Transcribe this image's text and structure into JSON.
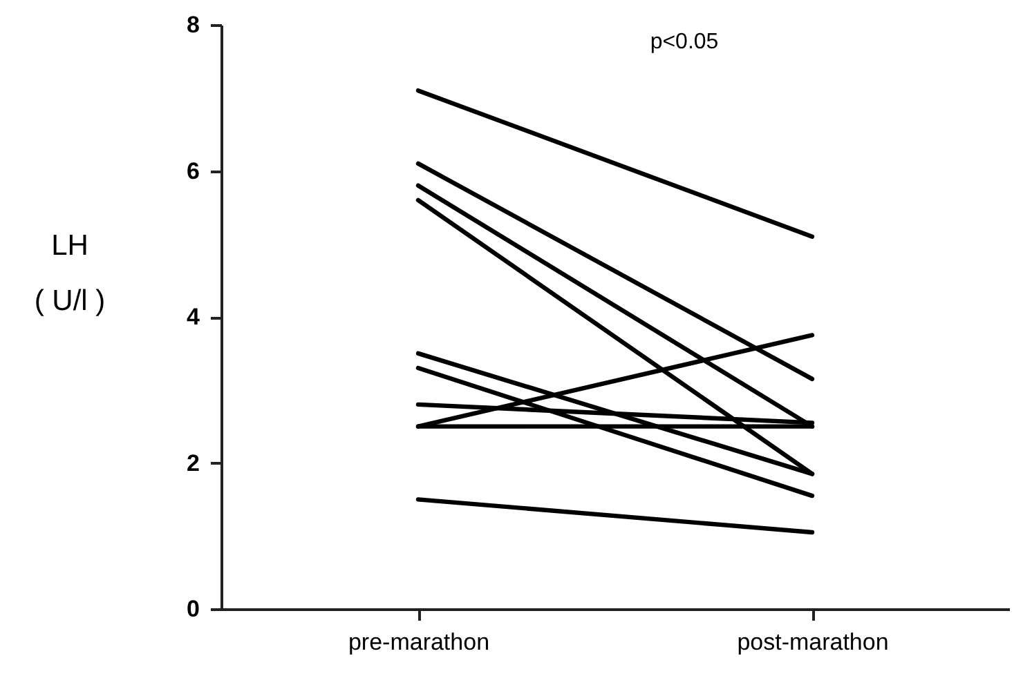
{
  "chart_data": {
    "type": "line",
    "categories": [
      "pre-marathon",
      "post-marathon"
    ],
    "ylabel": "LH\n( U/l )",
    "ylim": [
      0,
      8
    ],
    "yticks": [
      0,
      2,
      4,
      6,
      8
    ],
    "grid": false,
    "marker": "none",
    "line_style": "solid",
    "annotations": [
      "p<0.05"
    ],
    "series": [
      {
        "color": "#000000",
        "values": [
          7.1,
          5.1
        ]
      },
      {
        "color": "#000000",
        "values": [
          6.1,
          3.15
        ]
      },
      {
        "color": "#000000",
        "values": [
          5.8,
          2.5
        ]
      },
      {
        "color": "#000000",
        "values": [
          5.6,
          1.85
        ]
      },
      {
        "color": "#000000",
        "values": [
          3.5,
          1.85
        ]
      },
      {
        "color": "#000000",
        "values": [
          3.3,
          1.55
        ]
      },
      {
        "color": "#000000",
        "values": [
          2.8,
          2.55
        ]
      },
      {
        "color": "#000000",
        "values": [
          2.5,
          3.75
        ]
      },
      {
        "color": "#000000",
        "values": [
          2.5,
          2.5
        ]
      },
      {
        "color": "#000000",
        "values": [
          1.5,
          1.05
        ]
      }
    ]
  }
}
